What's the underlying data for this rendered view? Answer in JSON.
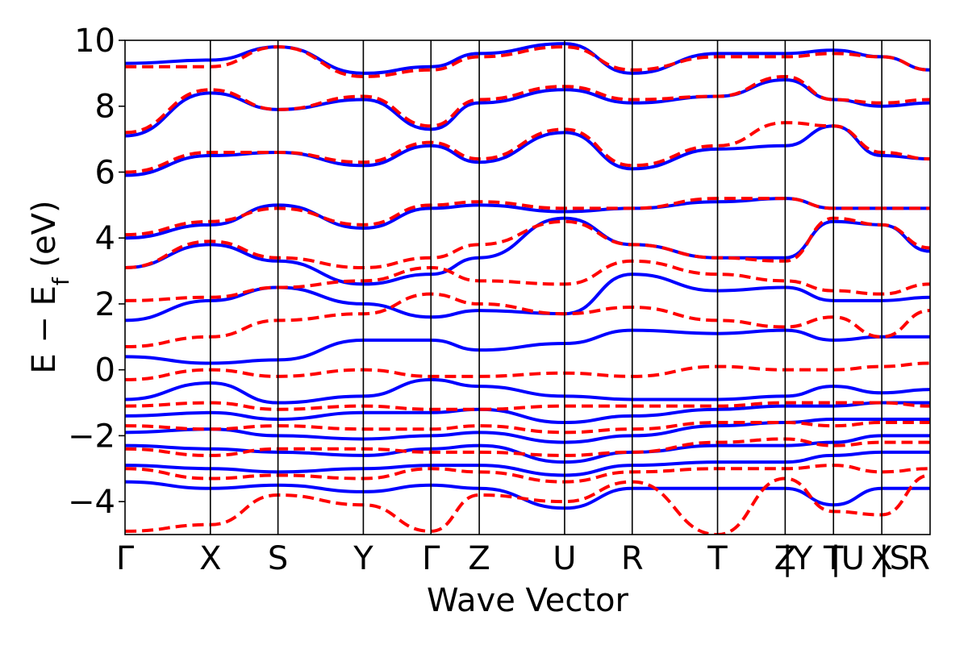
{
  "chart_data": {
    "type": "line",
    "title": "",
    "xlabel": "Wave Vector",
    "ylabel": "E − E_f (eV)",
    "ylabel_parts": {
      "main": "E − E",
      "sub": "f",
      "unit": " (eV)"
    },
    "ylim": [
      -5,
      10
    ],
    "y_ticks": [
      -4,
      -2,
      0,
      2,
      4,
      6,
      8,
      10
    ],
    "y_tick_labels": [
      "−4",
      "−2",
      "0",
      "2",
      "4",
      "6",
      "8",
      "10"
    ],
    "k_path": [
      {
        "label": "Γ",
        "k": 0.0
      },
      {
        "label": "X",
        "k": 0.106
      },
      {
        "label": "S",
        "k": 0.19
      },
      {
        "label": "Y",
        "k": 0.296
      },
      {
        "label": "Γ",
        "k": 0.38
      },
      {
        "label": "Z",
        "k": 0.44
      },
      {
        "label": "U",
        "k": 0.546
      },
      {
        "label": "R",
        "k": 0.63
      },
      {
        "label": "T",
        "k": 0.736
      },
      {
        "label": "Z",
        "k": 0.82
      },
      {
        "label": "|Y",
        "k": 0.82
      },
      {
        "label": "T",
        "k": 0.88
      },
      {
        "label": "|U",
        "k": 0.88
      },
      {
        "label": "X",
        "k": 0.94
      },
      {
        "label": "|S",
        "k": 0.94
      },
      {
        "label": "R",
        "k": 1.0
      }
    ],
    "xlim": [
      0,
      1.0
    ],
    "grid": false,
    "legend": "none",
    "series": [
      {
        "style": "solid",
        "color": "#0000ff",
        "band_energies_at_high_symmetry_points": {
          "k": [
            0.0,
            0.106,
            0.19,
            0.296,
            0.38,
            0.44,
            0.546,
            0.63,
            0.736,
            0.82,
            0.88,
            0.94,
            1.0
          ],
          "bands": [
            [
              -3.4,
              -3.6,
              -3.5,
              -3.7,
              -3.5,
              -3.6,
              -4.2,
              -3.6,
              -3.6,
              -3.6,
              -4.1,
              -3.6,
              -3.6
            ],
            [
              -2.9,
              -3.0,
              -3.1,
              -3.0,
              -2.9,
              -2.9,
              -3.2,
              -2.9,
              -2.8,
              -2.8,
              -2.6,
              -2.5,
              -2.5
            ],
            [
              -2.3,
              -2.4,
              -2.5,
              -2.6,
              -2.4,
              -2.3,
              -2.8,
              -2.5,
              -2.3,
              -2.3,
              -2.2,
              -2.0,
              -2.0
            ],
            [
              -1.9,
              -1.8,
              -2.0,
              -2.1,
              -2.0,
              -1.9,
              -2.2,
              -2.0,
              -1.7,
              -1.6,
              -1.5,
              -1.5,
              -1.5
            ],
            [
              -1.4,
              -1.3,
              -1.5,
              -1.3,
              -1.3,
              -1.2,
              -1.6,
              -1.4,
              -1.2,
              -1.1,
              -1.1,
              -1.0,
              -1.0
            ],
            [
              -0.9,
              -0.4,
              -1.0,
              -0.8,
              -0.3,
              -0.5,
              -0.8,
              -0.9,
              -0.9,
              -0.8,
              -0.5,
              -0.7,
              -0.6
            ],
            [
              0.4,
              0.2,
              0.3,
              0.9,
              0.9,
              0.6,
              0.8,
              1.2,
              1.1,
              1.2,
              0.9,
              1.0,
              1.0
            ],
            [
              1.5,
              2.1,
              2.5,
              2.0,
              1.6,
              1.8,
              1.7,
              2.9,
              2.4,
              2.5,
              2.1,
              2.1,
              2.2
            ],
            [
              3.1,
              3.8,
              3.3,
              2.6,
              2.9,
              3.4,
              4.6,
              3.8,
              3.4,
              3.4,
              4.5,
              4.4,
              3.6
            ],
            [
              4.0,
              4.4,
              5.0,
              4.3,
              4.9,
              5.0,
              4.8,
              4.9,
              5.1,
              5.2,
              4.9,
              4.9,
              4.9
            ],
            [
              5.9,
              6.5,
              6.6,
              6.2,
              6.8,
              6.3,
              7.2,
              6.1,
              6.7,
              6.8,
              7.4,
              6.5,
              6.4
            ],
            [
              7.1,
              8.4,
              7.9,
              8.2,
              7.3,
              8.1,
              8.5,
              8.1,
              8.3,
              8.8,
              8.2,
              8.0,
              8.1
            ],
            [
              9.3,
              9.4,
              9.8,
              9.0,
              9.2,
              9.6,
              9.9,
              9.0,
              9.6,
              9.6,
              9.7,
              9.5,
              9.1
            ]
          ]
        }
      },
      {
        "style": "dashed",
        "color": "#ff0000",
        "band_energies_at_high_symmetry_points": {
          "k": [
            0.0,
            0.106,
            0.19,
            0.296,
            0.38,
            0.44,
            0.546,
            0.63,
            0.736,
            0.82,
            0.88,
            0.94,
            1.0
          ],
          "bands": [
            [
              -4.9,
              -4.7,
              -3.8,
              -4.1,
              -4.9,
              -3.8,
              -4.0,
              -3.4,
              -5.0,
              -3.3,
              -4.3,
              -4.4,
              -3.2
            ],
            [
              -3.0,
              -3.3,
              -3.2,
              -3.3,
              -3.0,
              -3.1,
              -3.4,
              -3.1,
              -3.0,
              -3.0,
              -2.9,
              -3.1,
              -3.0
            ],
            [
              -2.4,
              -2.6,
              -2.4,
              -2.4,
              -2.5,
              -2.5,
              -2.6,
              -2.5,
              -2.2,
              -2.1,
              -2.3,
              -2.2,
              -2.2
            ],
            [
              -1.7,
              -1.8,
              -1.7,
              -1.8,
              -1.8,
              -1.7,
              -1.9,
              -1.8,
              -1.6,
              -1.6,
              -1.7,
              -1.6,
              -1.6
            ],
            [
              -1.1,
              -1.0,
              -1.2,
              -1.1,
              -1.2,
              -1.2,
              -1.1,
              -1.1,
              -1.1,
              -1.0,
              -1.0,
              -1.0,
              -1.1
            ],
            [
              -0.3,
              0.0,
              -0.2,
              0.0,
              -0.2,
              -0.2,
              -0.1,
              -0.2,
              0.1,
              0.0,
              0.0,
              0.1,
              0.2
            ],
            [
              0.7,
              1.0,
              1.5,
              1.7,
              2.3,
              2.0,
              1.7,
              1.9,
              1.5,
              1.3,
              1.6,
              1.0,
              1.8
            ],
            [
              2.1,
              2.2,
              2.5,
              2.7,
              3.1,
              2.7,
              2.6,
              3.3,
              2.9,
              2.7,
              2.4,
              2.3,
              2.6
            ],
            [
              3.1,
              3.9,
              3.4,
              3.1,
              3.4,
              3.8,
              4.5,
              3.8,
              3.4,
              3.3,
              4.6,
              4.4,
              3.7
            ],
            [
              4.1,
              4.5,
              4.9,
              4.4,
              5.0,
              5.1,
              4.9,
              4.9,
              5.2,
              5.2,
              4.9,
              4.9,
              4.9
            ],
            [
              6.0,
              6.6,
              6.6,
              6.3,
              6.9,
              6.4,
              7.3,
              6.2,
              6.8,
              7.5,
              7.4,
              6.6,
              6.4
            ],
            [
              7.2,
              8.5,
              7.9,
              8.3,
              7.4,
              8.2,
              8.6,
              8.2,
              8.3,
              8.9,
              8.2,
              8.1,
              8.2
            ],
            [
              9.2,
              9.2,
              9.8,
              8.9,
              9.1,
              9.5,
              9.8,
              9.1,
              9.5,
              9.5,
              9.6,
              9.5,
              9.1
            ]
          ]
        }
      }
    ]
  }
}
